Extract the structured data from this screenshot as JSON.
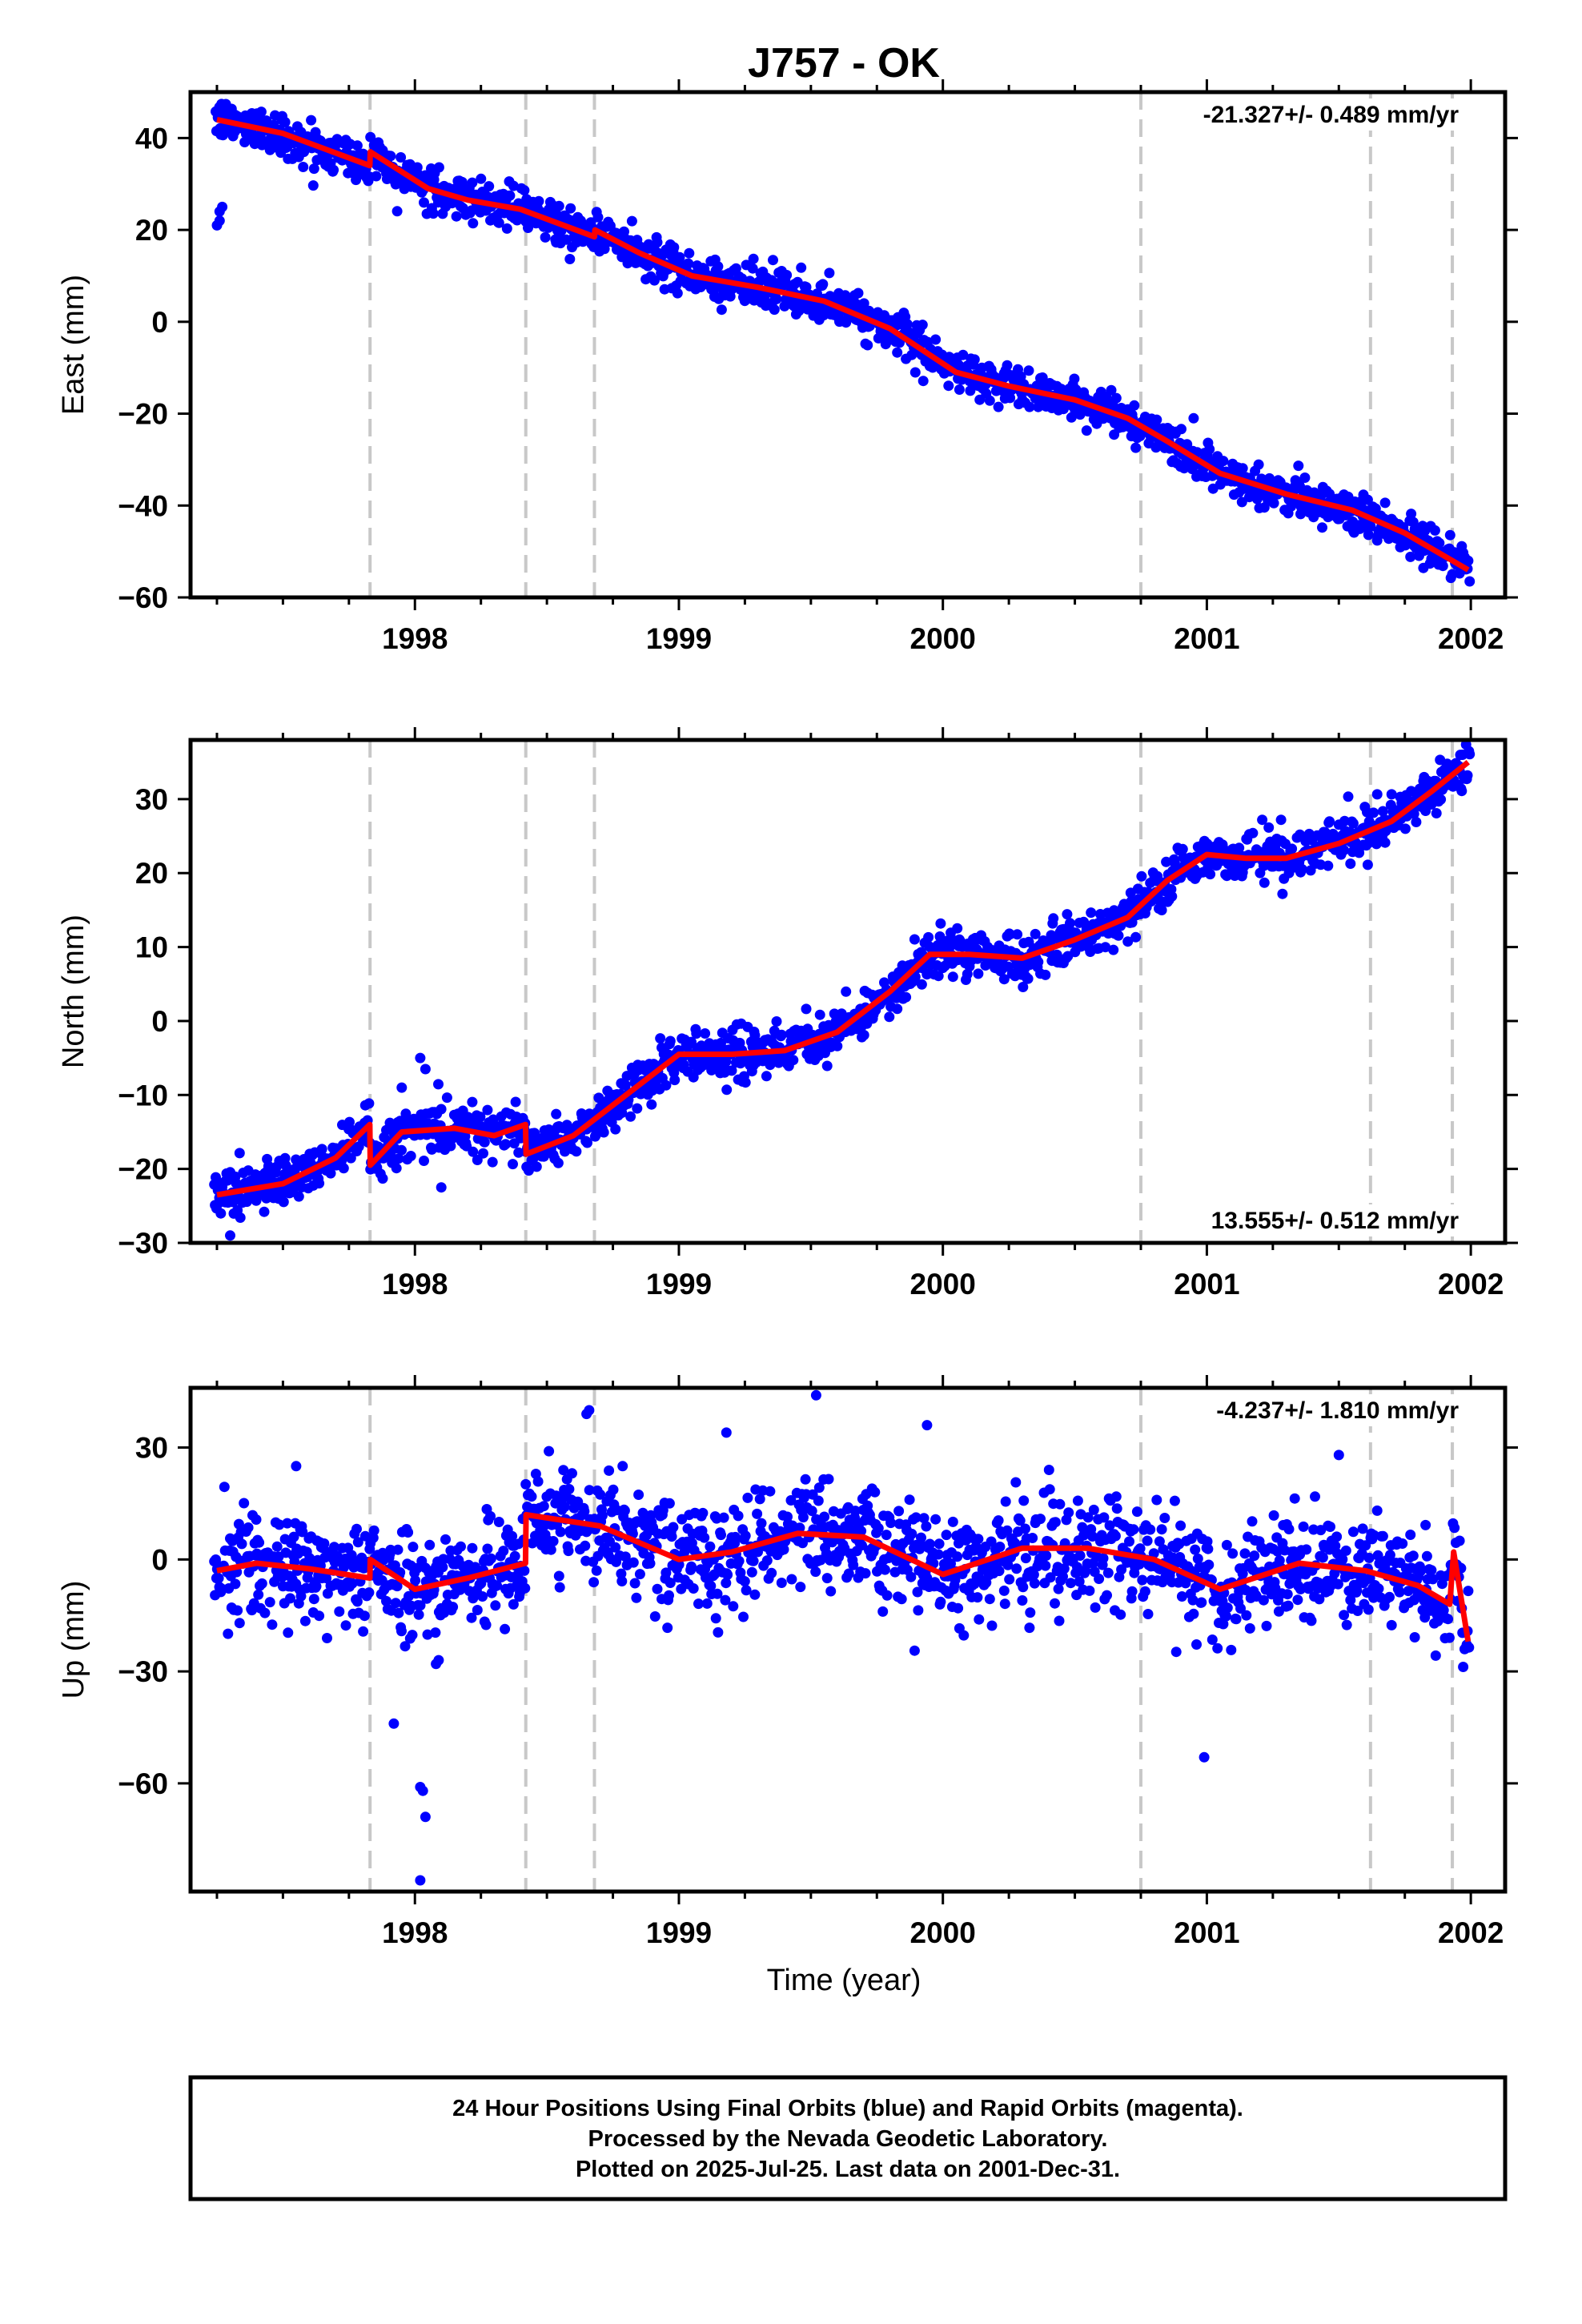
{
  "chart_data": {
    "type": "scatter",
    "title": "J757 - OK",
    "xlabel": "Time (year)",
    "xlim": [
      1997.15,
      2002.13
    ],
    "xticks": [
      "1998",
      "1999",
      "2000",
      "2001",
      "2002"
    ],
    "xtick_values": [
      1998,
      1999,
      2000,
      2001,
      2002
    ],
    "grid": false,
    "equipment_change_lines": [
      1997.83,
      1998.42,
      1998.68,
      2000.75,
      2001.62,
      2001.93
    ],
    "series_colors": {
      "final_orbits": "#0000ff",
      "rapid_orbits": "#ff00ff",
      "model": "#ff0000",
      "event_lines": "#c8c8c8"
    },
    "panels": [
      {
        "name": "east",
        "ylabel": "East (mm)",
        "ylim": [
          -60,
          50
        ],
        "yticks": [
          "40",
          "20",
          "0",
          "−20",
          "−40",
          "−60"
        ],
        "ytick_values": [
          40,
          20,
          0,
          -20,
          -40,
          -60
        ],
        "rate_label": "-21.327+/- 0.489 mm/yr",
        "rate_position": "top-right",
        "noise": 2.2,
        "model_knots": [
          [
            1997.25,
            44
          ],
          [
            1997.5,
            41
          ],
          [
            1997.829,
            34
          ],
          [
            1997.831,
            37
          ],
          [
            1998.05,
            29
          ],
          [
            1998.2,
            26.5
          ],
          [
            1998.4,
            24.5
          ],
          [
            1998.68,
            18.5
          ],
          [
            1998.682,
            20
          ],
          [
            1998.85,
            15
          ],
          [
            1999.05,
            10
          ],
          [
            1999.3,
            7.5
          ],
          [
            1999.55,
            4.5
          ],
          [
            1999.8,
            -1.5
          ],
          [
            2000.05,
            -11
          ],
          [
            2000.25,
            -14
          ],
          [
            2000.5,
            -17
          ],
          [
            2000.7,
            -21
          ],
          [
            2000.85,
            -26
          ],
          [
            2001.05,
            -33
          ],
          [
            2001.3,
            -37.5
          ],
          [
            2001.55,
            -41
          ],
          [
            2001.75,
            -46
          ],
          [
            2001.93,
            -52
          ],
          [
            2001.99,
            -54
          ]
        ],
        "outliers": [
          [
            1997.25,
            21
          ],
          [
            1997.26,
            24
          ],
          [
            1997.27,
            25
          ],
          [
            1997.26,
            22
          ],
          [
            2000.95,
            -21
          ]
        ]
      },
      {
        "name": "north",
        "ylabel": "North (mm)",
        "ylim": [
          -30,
          38
        ],
        "yticks": [
          "30",
          "20",
          "10",
          "0",
          "−10",
          "−20",
          "−30"
        ],
        "ytick_values": [
          30,
          20,
          10,
          0,
          -10,
          -20,
          -30
        ],
        "rate_label": "13.555+/- 0.512 mm/yr",
        "rate_position": "bottom-right",
        "noise": 1.6,
        "model_knots": [
          [
            1997.25,
            -23.5
          ],
          [
            1997.5,
            -22
          ],
          [
            1997.7,
            -18.5
          ],
          [
            1997.829,
            -14
          ],
          [
            1997.831,
            -19.5
          ],
          [
            1997.95,
            -15
          ],
          [
            1998.15,
            -14.5
          ],
          [
            1998.3,
            -15.5
          ],
          [
            1998.419,
            -14
          ],
          [
            1998.421,
            -18
          ],
          [
            1998.6,
            -15.5
          ],
          [
            1998.8,
            -10
          ],
          [
            1999.0,
            -4.5
          ],
          [
            1999.2,
            -4.5
          ],
          [
            1999.4,
            -4
          ],
          [
            1999.6,
            -1.5
          ],
          [
            1999.8,
            4
          ],
          [
            1999.95,
            9
          ],
          [
            2000.1,
            9
          ],
          [
            2000.3,
            8.5
          ],
          [
            2000.5,
            11
          ],
          [
            2000.7,
            14
          ],
          [
            2000.85,
            19
          ],
          [
            2001.0,
            22.5
          ],
          [
            2001.15,
            22
          ],
          [
            2001.3,
            22
          ],
          [
            2001.5,
            24
          ],
          [
            2001.7,
            27
          ],
          [
            2001.85,
            31
          ],
          [
            2001.99,
            35
          ]
        ],
        "outliers": [
          [
            1997.3,
            -29
          ],
          [
            1998.02,
            -5
          ],
          [
            1998.04,
            -6.5
          ],
          [
            1998.1,
            -22.5
          ],
          [
            1997.95,
            -9
          ]
        ]
      },
      {
        "name": "up",
        "ylabel": "Up (mm)",
        "ylim": [
          -89,
          46
        ],
        "yticks": [
          "30",
          "0",
          "−30",
          "−60"
        ],
        "ytick_values": [
          30,
          0,
          -30,
          -60
        ],
        "rate_label": "-4.237+/- 1.810 mm/yr",
        "rate_position": "top-right",
        "noise": 7,
        "model_knots": [
          [
            1997.25,
            -3
          ],
          [
            1997.4,
            -1
          ],
          [
            1997.6,
            -2.5
          ],
          [
            1997.829,
            -5
          ],
          [
            1997.831,
            0
          ],
          [
            1998.0,
            -8
          ],
          [
            1998.2,
            -5
          ],
          [
            1998.419,
            -1
          ],
          [
            1998.421,
            12
          ],
          [
            1998.7,
            9
          ],
          [
            1999.0,
            0
          ],
          [
            1999.2,
            2
          ],
          [
            1999.45,
            7
          ],
          [
            1999.7,
            6
          ],
          [
            2000.0,
            -4
          ],
          [
            2000.3,
            3
          ],
          [
            2000.55,
            3
          ],
          [
            2000.8,
            0
          ],
          [
            2001.05,
            -8
          ],
          [
            2001.35,
            -1
          ],
          [
            2001.6,
            -3
          ],
          [
            2001.8,
            -7
          ],
          [
            2001.92,
            -12
          ],
          [
            2001.935,
            2
          ],
          [
            2001.99,
            -22
          ]
        ],
        "outliers": [
          [
            1997.92,
            -44
          ],
          [
            1998.02,
            -61
          ],
          [
            1998.03,
            -62
          ],
          [
            1998.04,
            -69
          ],
          [
            1998.02,
            -86
          ],
          [
            1998.08,
            -28
          ],
          [
            1998.09,
            -27
          ],
          [
            2000.99,
            -53
          ],
          [
            1999.52,
            44
          ],
          [
            1998.65,
            39
          ],
          [
            1998.66,
            40
          ],
          [
            1999.18,
            34
          ],
          [
            1999.94,
            36
          ],
          [
            1997.55,
            25
          ],
          [
            2001.5,
            28
          ]
        ]
      }
    ]
  },
  "footer": {
    "lines": [
      "24 Hour Positions Using Final Orbits (blue) and Rapid Orbits (magenta).",
      "Processed by the Nevada Geodetic Laboratory.",
      "Plotted on 2025-Jul-25. Last data on 2001-Dec-31."
    ]
  }
}
